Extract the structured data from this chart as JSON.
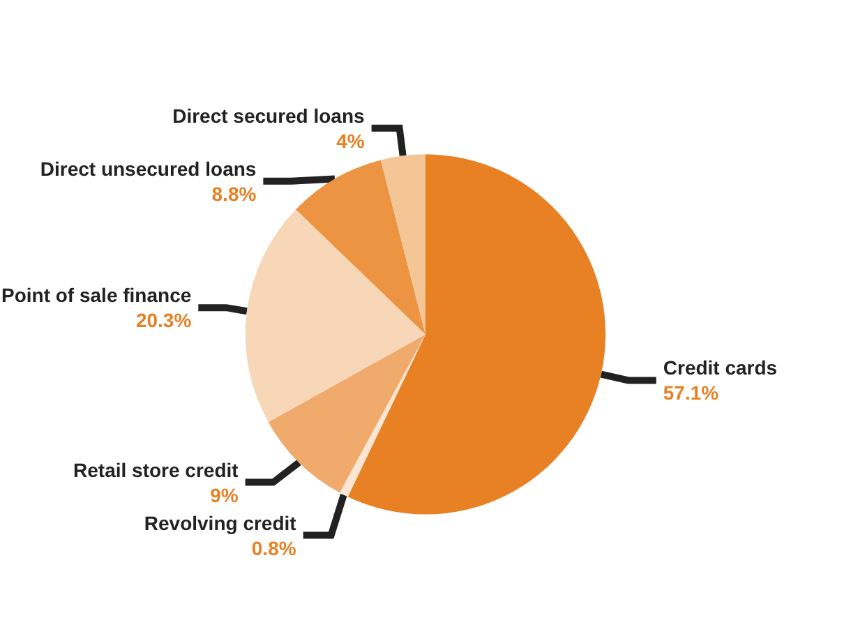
{
  "chart_data": {
    "type": "pie",
    "categories": [
      "Credit cards",
      "Revolving credit",
      "Retail store credit",
      "Point of sale finance",
      "Direct unsecured loans",
      "Direct secured loans"
    ],
    "values": [
      57.1,
      0.8,
      9,
      20.3,
      8.8,
      4
    ],
    "value_labels": [
      "57.1%",
      "0.8%",
      "9%",
      "20.3%",
      "8.8%",
      "4%"
    ],
    "colors": [
      "#e88024",
      "#fae6d3",
      "#efaa6c",
      "#f7d7b8",
      "#ec9442",
      "#f4c595"
    ],
    "legend": false
  }
}
